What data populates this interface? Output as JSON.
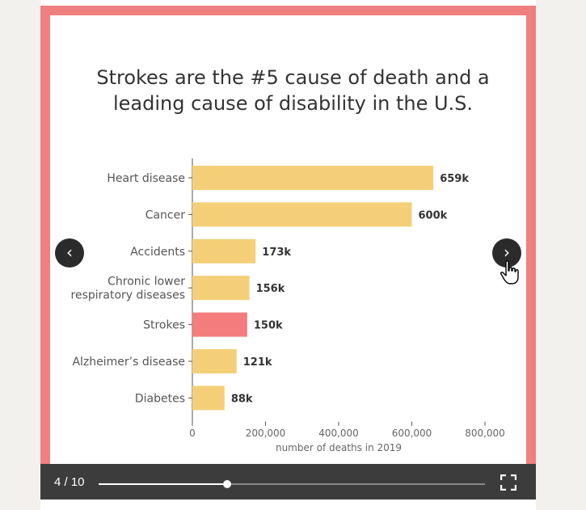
{
  "slide": {
    "title_line1": "Strokes are the #5 cause of death and a",
    "title_line2": "leading cause of disability in the U.S."
  },
  "colors": {
    "frame": "#f07f7f",
    "bar_default": "#f5cf78",
    "bar_highlight": "#f47c7c"
  },
  "chart_data": {
    "type": "bar",
    "orientation": "horizontal",
    "title": "Strokes are the #5 cause of death and a leading cause of disability in the U.S.",
    "xlabel": "number of deaths in 2019",
    "ylabel": "",
    "xlim": [
      0,
      800000
    ],
    "xticks": [
      0,
      200000,
      400000,
      600000,
      800000
    ],
    "xtick_labels": [
      "0",
      "200,000",
      "400,000",
      "600,000",
      "800,000"
    ],
    "grid": false,
    "categories": [
      [
        "Heart disease"
      ],
      [
        "Cancer"
      ],
      [
        "Accidents"
      ],
      [
        "Chronic lower",
        "respiratory diseases"
      ],
      [
        "Strokes"
      ],
      [
        "Alzheimer’s disease"
      ],
      [
        "Diabetes"
      ]
    ],
    "values": [
      659000,
      600000,
      173000,
      156000,
      150000,
      121000,
      88000
    ],
    "data_labels": [
      "659k",
      "600k",
      "173k",
      "156k",
      "150k",
      "121k",
      "88k"
    ],
    "highlight_index": 4
  },
  "navigation": {
    "prev_icon": "chevron-left-icon",
    "next_icon": "chevron-right-icon",
    "prev_glyph": "‹",
    "next_glyph": "›"
  },
  "controls": {
    "counter": "4 / 10",
    "current": 4,
    "total": 10,
    "progress_fraction": 0.333,
    "fullscreen_icon": "fullscreen-icon"
  }
}
